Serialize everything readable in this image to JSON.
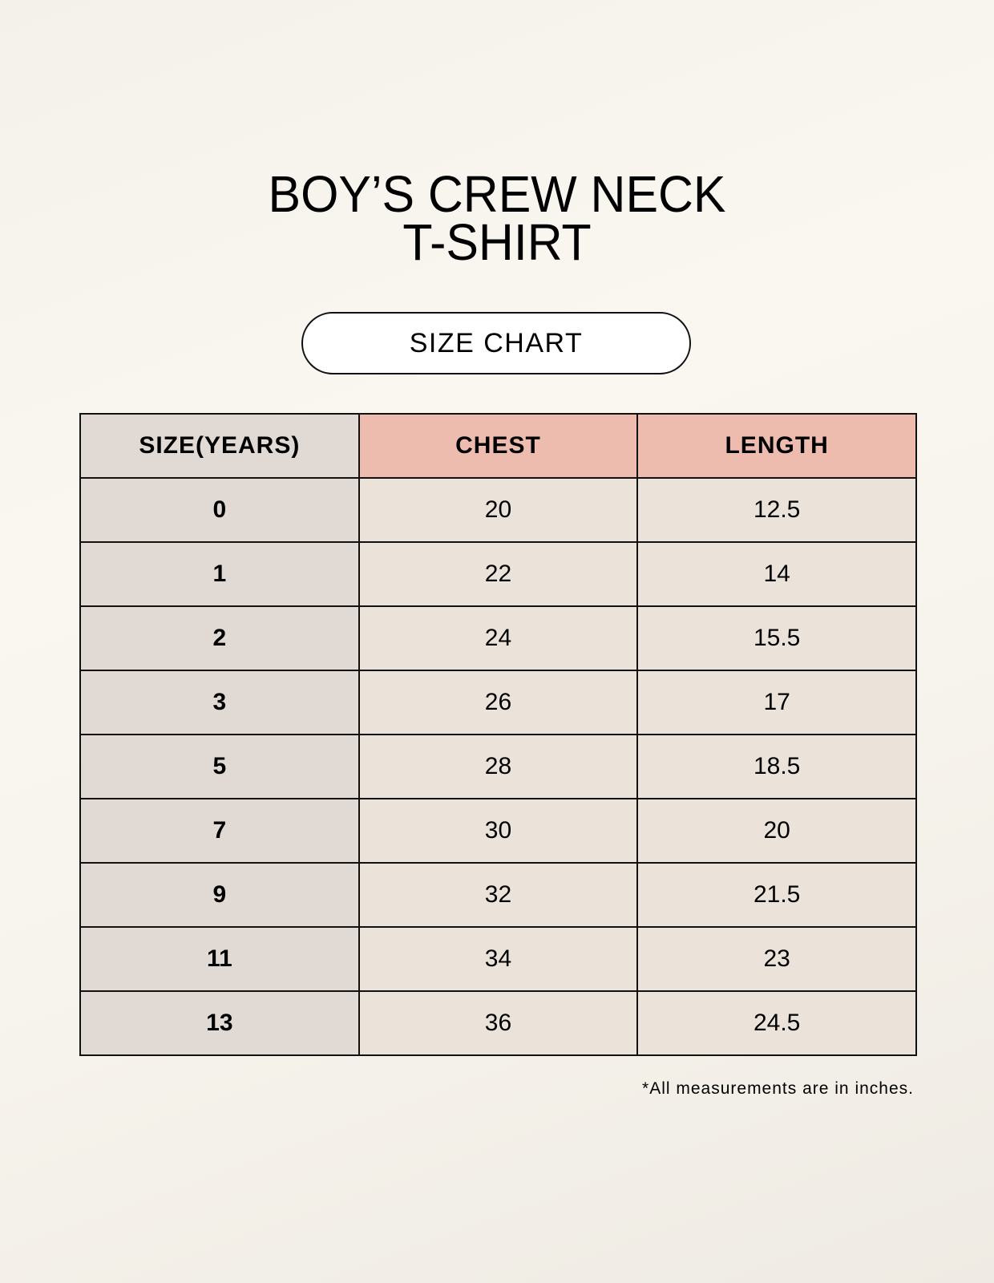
{
  "title_line1": "BOY’S CREW NECK",
  "title_line2": "T-SHIRT",
  "badge": "SIZE CHART",
  "colors": {
    "size_column": "#e0d9d4",
    "header_accent": "#eebcae",
    "cell": "#ebe3d9"
  },
  "table": {
    "headers": [
      "SIZE(YEARS)",
      "CHEST",
      "LENGTH"
    ],
    "rows": [
      [
        "0",
        "20",
        "12.5"
      ],
      [
        "1",
        "22",
        "14"
      ],
      [
        "2",
        "24",
        "15.5"
      ],
      [
        "3",
        "26",
        "17"
      ],
      [
        "5",
        "28",
        "18.5"
      ],
      [
        "7",
        "30",
        "20"
      ],
      [
        "9",
        "32",
        "21.5"
      ],
      [
        "11",
        "34",
        "23"
      ],
      [
        "13",
        "36",
        "24.5"
      ]
    ]
  },
  "footnote": "*All measurements are in inches."
}
